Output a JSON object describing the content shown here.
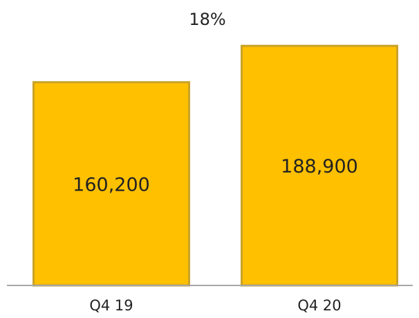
{
  "chart_data": {
    "type": "bar",
    "title": "",
    "xlabel": "",
    "ylabel": "",
    "categories": [
      "Q4 19",
      "Q4 20"
    ],
    "values": [
      160200,
      188900
    ],
    "value_labels": [
      "160,200",
      "188,900"
    ],
    "change_annotation": "18%",
    "ylim": [
      0,
      195000
    ],
    "grid": false,
    "legend": "none",
    "bar_color": "#FFC000",
    "bar_edge_color": "#C9A227",
    "axis_color": "#A6A6A6"
  }
}
